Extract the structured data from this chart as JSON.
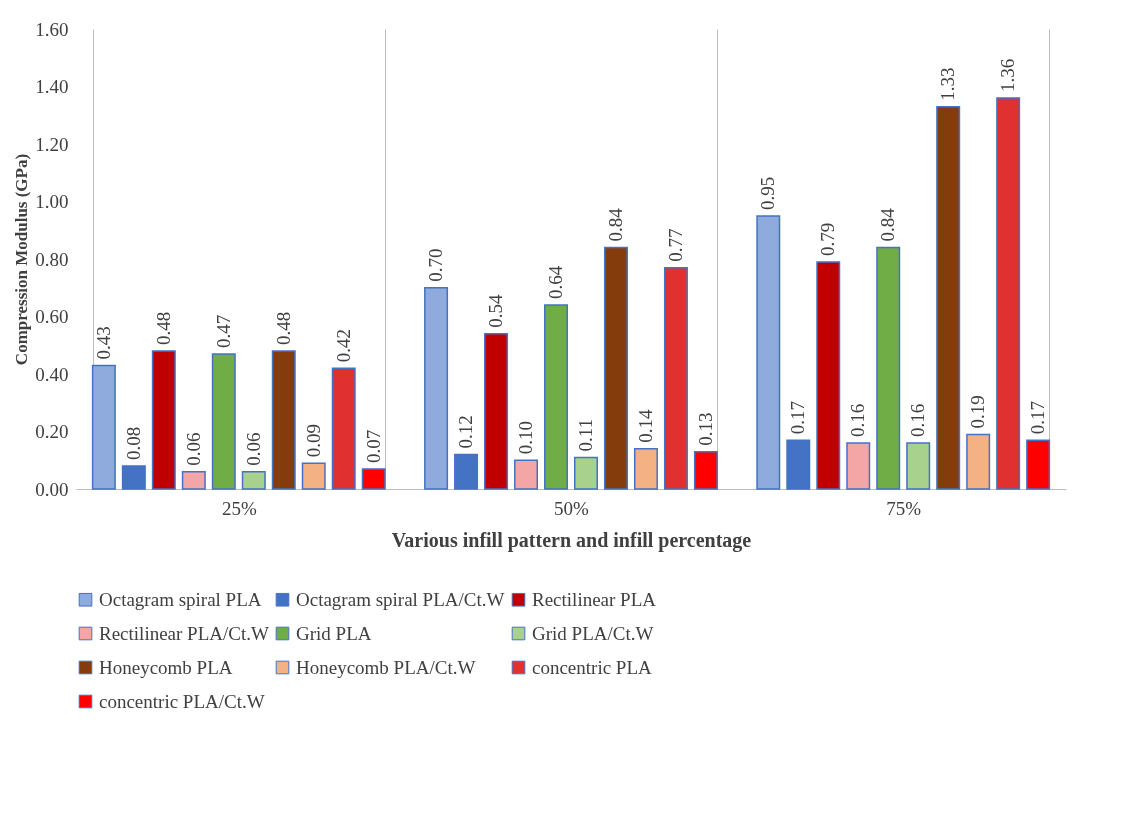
{
  "chart_data": {
    "type": "bar",
    "xlabel": "Various infill pattern and infill percentage",
    "ylabel": "Compression Modulus (GPa)",
    "categories": [
      "25%",
      "50%",
      "75%"
    ],
    "series": [
      {
        "name": "Octagram spiral PLA",
        "color": "#8faadc",
        "values": [
          0.43,
          0.7,
          0.95
        ],
        "value_labels": [
          "0.43",
          "0.70",
          "0.95"
        ]
      },
      {
        "name": "Octagram spiral PLA/Ct.W",
        "color": "#4472c4",
        "values": [
          0.08,
          0.12,
          0.17
        ],
        "value_labels": [
          "0.08",
          "0.12",
          "0.17"
        ]
      },
      {
        "name": "Rectilinear PLA",
        "color": "#c00000",
        "values": [
          0.48,
          0.54,
          0.79
        ],
        "value_labels": [
          "0.48",
          "0.54",
          "0.79"
        ]
      },
      {
        "name": "Rectilinear PLA/Ct.W",
        "color": "#f4a6a6",
        "values": [
          0.06,
          0.1,
          0.16
        ],
        "value_labels": [
          "0.06",
          "0.10",
          "0.16"
        ]
      },
      {
        "name": "Grid PLA",
        "color": "#70ad47",
        "values": [
          0.47,
          0.64,
          0.84
        ],
        "value_labels": [
          "0.47",
          "0.64",
          "0.84"
        ]
      },
      {
        "name": "Grid PLA/Ct.W",
        "color": "#a9d18e",
        "values": [
          0.06,
          0.11,
          0.16
        ],
        "value_labels": [
          "0.06",
          "0.11",
          "0.16"
        ]
      },
      {
        "name": "Honeycomb PLA",
        "color": "#843c0c",
        "values": [
          0.48,
          0.84,
          1.33
        ],
        "value_labels": [
          "0.48",
          "0.84",
          "1.33"
        ]
      },
      {
        "name": "Honeycomb PLA/Ct.W",
        "color": "#f4b183",
        "values": [
          0.09,
          0.14,
          0.19
        ],
        "value_labels": [
          "0.09",
          "0.14",
          "0.19"
        ]
      },
      {
        "name": "concentric PLA",
        "color": "#e03030",
        "values": [
          0.42,
          0.77,
          1.36
        ],
        "value_labels": [
          "0.42",
          "0.77",
          "1.36"
        ]
      },
      {
        "name": "concentric PLA/Ct.W",
        "color": "#ff0000",
        "values": [
          0.07,
          0.13,
          0.17
        ],
        "value_labels": [
          "0.07",
          "0.13",
          "0.17"
        ]
      }
    ],
    "ylim": [
      0,
      1.6
    ],
    "yticks": [
      {
        "value": 0,
        "label": "0.00"
      },
      {
        "value": 0.2,
        "label": "0.20"
      },
      {
        "value": 0.4,
        "label": "0.40"
      },
      {
        "value": 0.6,
        "label": "0.60"
      },
      {
        "value": 0.8,
        "label": "0.80"
      },
      {
        "value": 1.0,
        "label": "1.00"
      },
      {
        "value": 1.2,
        "label": "1.20"
      },
      {
        "value": 1.4,
        "label": "1.40"
      },
      {
        "value": 1.6,
        "label": "1.60"
      }
    ],
    "grid": "x",
    "legend": "bottom"
  }
}
